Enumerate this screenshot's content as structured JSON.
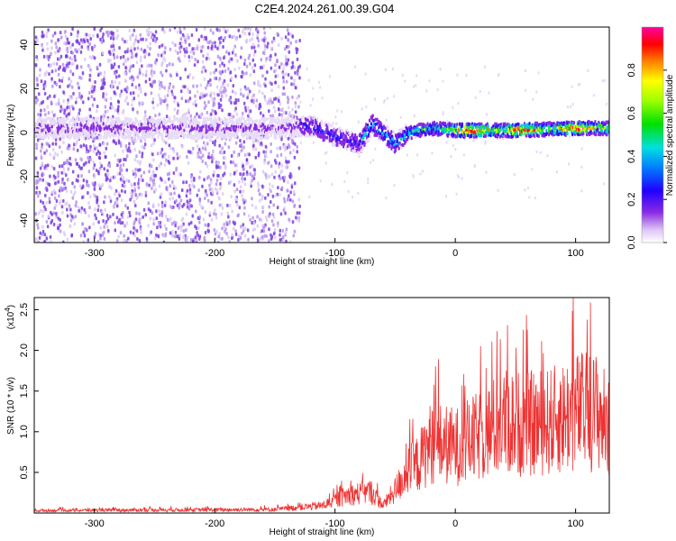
{
  "chart_data": [
    {
      "type": "heatmap",
      "title": "C2E4.2024.261.00.39.G04",
      "xlabel": "Height of straight line (km)",
      "ylabel": "Frequency (Hz)",
      "xlim": [
        -350,
        128
      ],
      "ylim": [
        -50,
        48
      ],
      "xticks": [
        "-300",
        "-200",
        "-100",
        "0",
        "100"
      ],
      "yticks": [
        "-40",
        "-20",
        "0",
        "20",
        "40"
      ],
      "colorbar": {
        "label": "Normalized spectral amplitude",
        "range": [
          0,
          1
        ],
        "ticks": [
          "0.0",
          "0.2",
          "0.4",
          "0.6",
          "0.8"
        ],
        "colormap": "rainbow (white-violet-blue-cyan-green-yellow-red-magenta)"
      },
      "signal_trace": {
        "description_points_x": [
          -350,
          -300,
          -250,
          -200,
          -150,
          -120,
          -100,
          -80,
          -70,
          -50,
          -40,
          -20,
          0,
          50,
          100,
          128
        ],
        "center_frequency_hz": [
          2,
          2,
          2,
          2,
          2,
          3,
          -2,
          -5,
          4,
          -5,
          0,
          2,
          1,
          1,
          2,
          2
        ]
      },
      "grid": false
    },
    {
      "type": "line",
      "title": "",
      "xlabel": "Height of straight line (km)",
      "ylabel": "SNR (10 * v/v)",
      "scale_label": "(x10",
      "scale_exp": "4",
      "scale_close": ")",
      "xlim": [
        -350,
        128
      ],
      "ylim": [
        0,
        26500
      ],
      "xticks": [
        "-300",
        "-200",
        "-100",
        "0",
        "100"
      ],
      "yticks": [
        "0.5",
        "1.0",
        "1.5",
        "2.0",
        "2.5"
      ],
      "series": [
        {
          "color": "#ee3333",
          "envelope_x": [
            -350,
            -150,
            -110,
            -90,
            -70,
            -60,
            -50,
            -40,
            -30,
            -20,
            0,
            20,
            40,
            60,
            80,
            100,
            120,
            128
          ],
          "envelope_y": [
            500,
            700,
            1500,
            3500,
            4200,
            1500,
            4500,
            8000,
            10000,
            14000,
            13000,
            15000,
            18000,
            17500,
            18000,
            20000,
            20000,
            16000
          ]
        }
      ],
      "grid": false
    }
  ]
}
